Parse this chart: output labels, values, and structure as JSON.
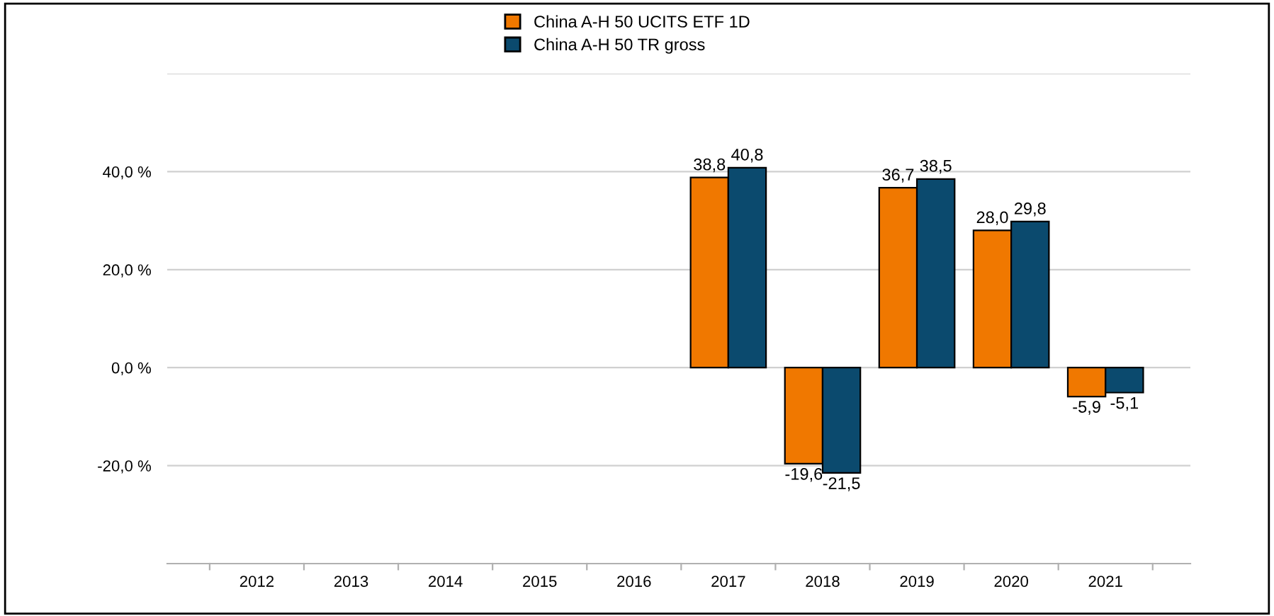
{
  "chart_data": {
    "type": "bar",
    "categories": [
      "2012",
      "2013",
      "2014",
      "2015",
      "2016",
      "2017",
      "2018",
      "2019",
      "2020",
      "2021"
    ],
    "series": [
      {
        "name": "China A-H 50 UCITS ETF 1D",
        "color": "#f07800",
        "values": [
          null,
          null,
          null,
          null,
          null,
          38.8,
          -19.6,
          36.7,
          28.0,
          -5.9
        ],
        "value_labels": [
          null,
          null,
          null,
          null,
          null,
          "38,8",
          "-19,6",
          "36,7",
          "28,0",
          "-5,9"
        ]
      },
      {
        "name": "China A-H 50 TR gross",
        "color": "#0b4a6e",
        "values": [
          null,
          null,
          null,
          null,
          null,
          40.8,
          -21.5,
          38.5,
          29.8,
          -5.1
        ],
        "value_labels": [
          null,
          null,
          null,
          null,
          null,
          "40,8",
          "-21,5",
          "38,5",
          "29,8",
          "-5,1"
        ]
      }
    ],
    "ylim": [
      -40,
      60
    ],
    "yticks": [
      {
        "value": -40,
        "label": null
      },
      {
        "value": -20,
        "label": "-20,0 %"
      },
      {
        "value": 0,
        "label": "0,0 %"
      },
      {
        "value": 20,
        "label": "20,0 %"
      },
      {
        "value": 40,
        "label": "40,0 %"
      },
      {
        "value": 60,
        "label": null
      }
    ],
    "grid": "y",
    "legend": "top"
  }
}
